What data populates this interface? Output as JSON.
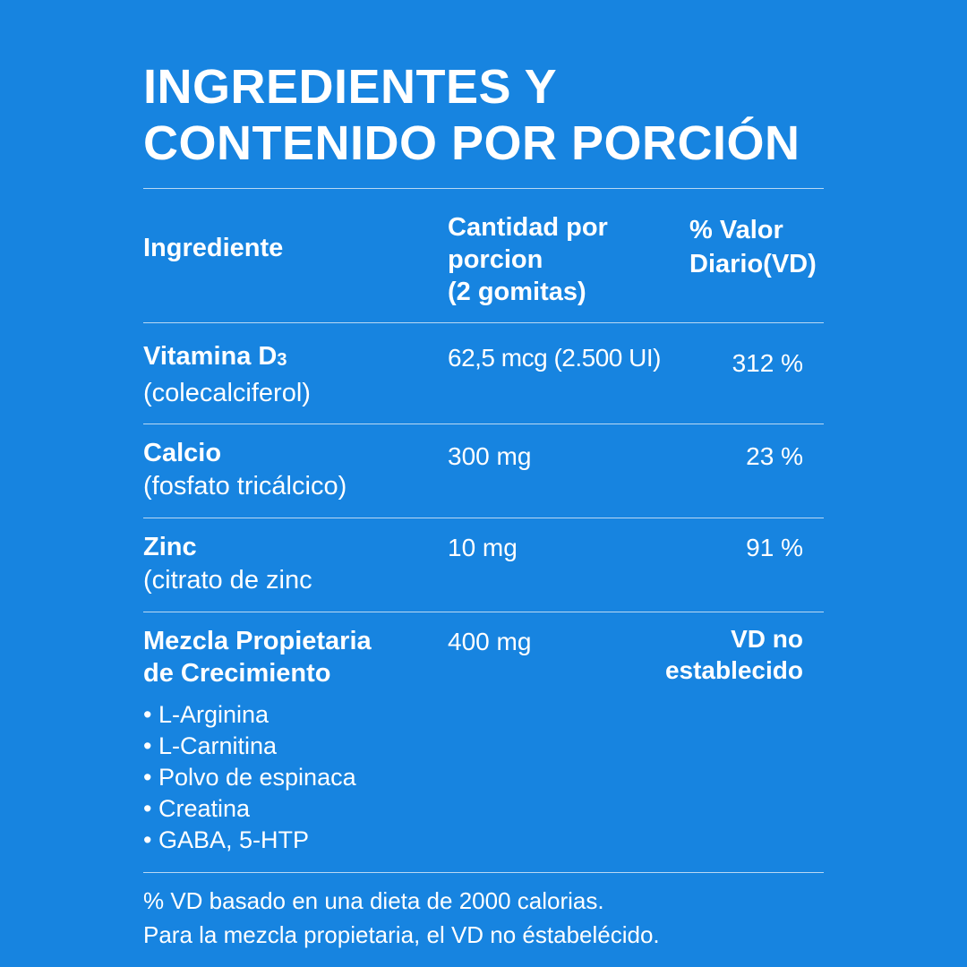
{
  "title": {
    "line1": "INGREDIENTES Y",
    "line2": "CONTENIDO POR PORCIÓN"
  },
  "table": {
    "headers": {
      "ingredient": "Ingrediente",
      "amount": [
        "Cantidad por",
        "porcion",
        "(2 gomitas)"
      ],
      "dv": [
        "% Valor",
        "Diario(VD)"
      ]
    },
    "rows": [
      {
        "name": "Vitamina D",
        "name_sub": "3",
        "detail": "(colecalciferol)",
        "amount": "62,5 mcg (2.500 UI)",
        "dv": "312 %"
      },
      {
        "name": "Calcio",
        "detail": "(fosfato tricálcico)",
        "amount": "300 mg",
        "dv": "23 %"
      },
      {
        "name": "Zinc",
        "detail": "(citrato de zinc",
        "amount": "10 mg",
        "dv": "91 %"
      },
      {
        "name": "Mezcla Propietaria",
        "detail": "de Crecimiento",
        "amount": "400 mg",
        "dv": [
          "VD no",
          "establecido"
        ],
        "items": [
          "• L-Arginina",
          "• L-Carnitina",
          "• Polvo de espinaca",
          "• Creatina",
          "• GABA, 5-HTP"
        ]
      }
    ]
  },
  "footer": {
    "line1": "% VD basado en una dieta de 2000 calorias.",
    "line2": "Para la mezcla propietaria, el VD no éstabelécido."
  },
  "colors": {
    "background": "#1784e0",
    "text": "#ffffff",
    "rule": "#b9d8f4"
  }
}
